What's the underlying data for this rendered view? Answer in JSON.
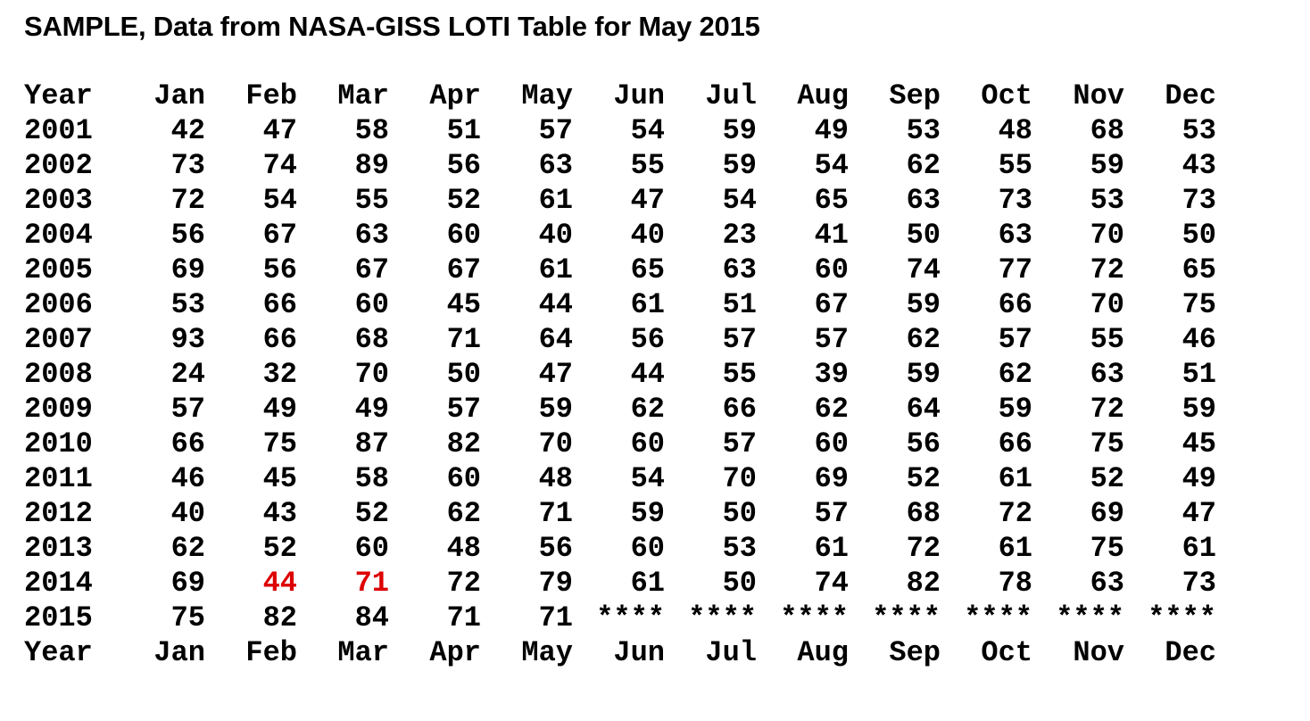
{
  "title": "SAMPLE, Data from NASA-GISS LOTI Table for May 2015",
  "colors": {
    "background": "#ffffff",
    "text": "#000000",
    "highlight_red": "#dd0000"
  },
  "chart_data": {
    "type": "table",
    "title": "SAMPLE, Data from NASA-GISS LOTI Table for May 2015",
    "columns": [
      "Year",
      "Jan",
      "Feb",
      "Mar",
      "Apr",
      "May",
      "Jun",
      "Jul",
      "Aug",
      "Sep",
      "Oct",
      "Nov",
      "Dec"
    ],
    "footer_columns": [
      "Year",
      "Jan",
      "Feb",
      "Mar",
      "Apr",
      "May",
      "Jun",
      "Jul",
      "Aug",
      "Sep",
      "Oct",
      "Nov",
      "Dec"
    ],
    "missing_marker": "****",
    "rows": [
      {
        "year": "2001",
        "values": [
          "42",
          "47",
          "58",
          "51",
          "57",
          "54",
          "59",
          "49",
          "53",
          "48",
          "68",
          "53"
        ],
        "highlight_indices": []
      },
      {
        "year": "2002",
        "values": [
          "73",
          "74",
          "89",
          "56",
          "63",
          "55",
          "59",
          "54",
          "62",
          "55",
          "59",
          "43"
        ],
        "highlight_indices": []
      },
      {
        "year": "2003",
        "values": [
          "72",
          "54",
          "55",
          "52",
          "61",
          "47",
          "54",
          "65",
          "63",
          "73",
          "53",
          "73"
        ],
        "highlight_indices": []
      },
      {
        "year": "2004",
        "values": [
          "56",
          "67",
          "63",
          "60",
          "40",
          "40",
          "23",
          "41",
          "50",
          "63",
          "70",
          "50"
        ],
        "highlight_indices": []
      },
      {
        "year": "2005",
        "values": [
          "69",
          "56",
          "67",
          "67",
          "61",
          "65",
          "63",
          "60",
          "74",
          "77",
          "72",
          "65"
        ],
        "highlight_indices": []
      },
      {
        "year": "2006",
        "values": [
          "53",
          "66",
          "60",
          "45",
          "44",
          "61",
          "51",
          "67",
          "59",
          "66",
          "70",
          "75"
        ],
        "highlight_indices": []
      },
      {
        "year": "2007",
        "values": [
          "93",
          "66",
          "68",
          "71",
          "64",
          "56",
          "57",
          "57",
          "62",
          "57",
          "55",
          "46"
        ],
        "highlight_indices": []
      },
      {
        "year": "2008",
        "values": [
          "24",
          "32",
          "70",
          "50",
          "47",
          "44",
          "55",
          "39",
          "59",
          "62",
          "63",
          "51"
        ],
        "highlight_indices": []
      },
      {
        "year": "2009",
        "values": [
          "57",
          "49",
          "49",
          "57",
          "59",
          "62",
          "66",
          "62",
          "64",
          "59",
          "72",
          "59"
        ],
        "highlight_indices": []
      },
      {
        "year": "2010",
        "values": [
          "66",
          "75",
          "87",
          "82",
          "70",
          "60",
          "57",
          "60",
          "56",
          "66",
          "75",
          "45"
        ],
        "highlight_indices": []
      },
      {
        "year": "2011",
        "values": [
          "46",
          "45",
          "58",
          "60",
          "48",
          "54",
          "70",
          "69",
          "52",
          "61",
          "52",
          "49"
        ],
        "highlight_indices": []
      },
      {
        "year": "2012",
        "values": [
          "40",
          "43",
          "52",
          "62",
          "71",
          "59",
          "50",
          "57",
          "68",
          "72",
          "69",
          "47"
        ],
        "highlight_indices": []
      },
      {
        "year": "2013",
        "values": [
          "62",
          "52",
          "60",
          "48",
          "56",
          "60",
          "53",
          "61",
          "72",
          "61",
          "75",
          "61"
        ],
        "highlight_indices": []
      },
      {
        "year": "2014",
        "values": [
          "69",
          "44",
          "71",
          "72",
          "79",
          "61",
          "50",
          "74",
          "82",
          "78",
          "63",
          "73"
        ],
        "highlight_indices": [
          1,
          2
        ]
      },
      {
        "year": "2015",
        "values": [
          "75",
          "82",
          "84",
          "71",
          "71",
          "****",
          "****",
          "****",
          "****",
          "****",
          "****",
          "****"
        ],
        "highlight_indices": []
      }
    ]
  }
}
